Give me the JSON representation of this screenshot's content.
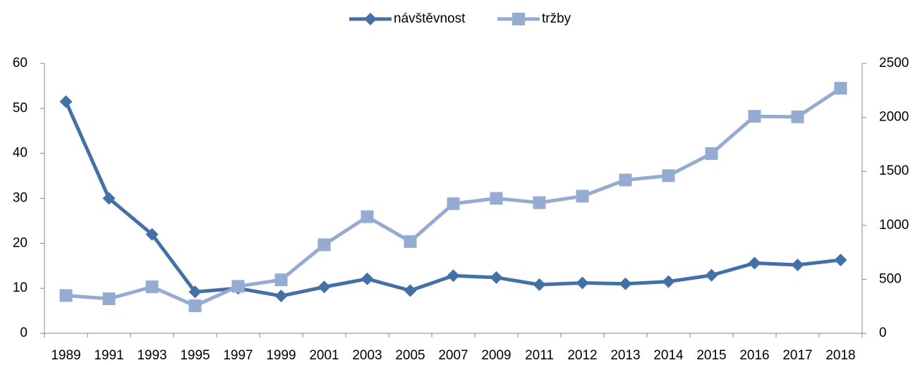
{
  "chart_data": {
    "type": "line",
    "categories": [
      "1989",
      "1991",
      "1993",
      "1995",
      "1997",
      "1999",
      "2001",
      "2003",
      "2005",
      "2007",
      "2009",
      "2011",
      "2012",
      "2013",
      "2014",
      "2015",
      "2016",
      "2017",
      "2018"
    ],
    "series": [
      {
        "name": "návštěvnost",
        "color": "#4470a8",
        "values": [
          51.5,
          30,
          22,
          9.2,
          10,
          8.3,
          10.3,
          12.1,
          9.5,
          12.8,
          12.4,
          10.8,
          11.2,
          11.0,
          11.5,
          12.9,
          15.6,
          15.2,
          16.3
        ]
      },
      {
        "name": "tržby",
        "color": "#95abd2",
        "axis": "y2",
        "values": [
          350,
          320,
          430,
          255,
          435,
          495,
          820,
          1080,
          850,
          1200,
          1250,
          1210,
          1270,
          1420,
          1460,
          1665,
          2010,
          2005,
          2270
        ]
      }
    ],
    "ylim": [
      0,
      60
    ],
    "yticks": [
      0,
      10,
      20,
      30,
      40,
      50,
      60
    ],
    "y2lim": [
      0,
      2500
    ],
    "y2ticks": [
      0,
      500,
      1000,
      1500,
      2000,
      2500
    ],
    "grid": false,
    "legend": "top"
  }
}
